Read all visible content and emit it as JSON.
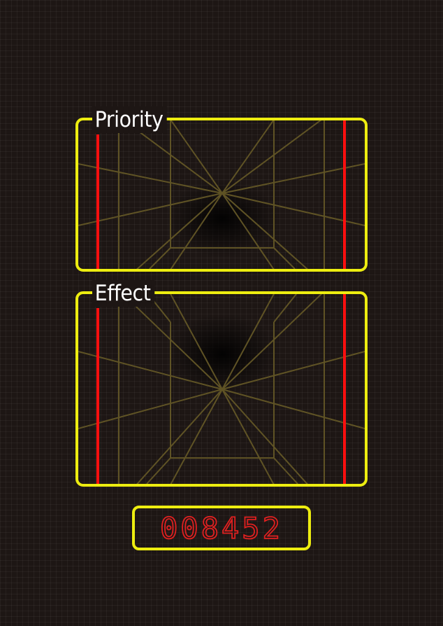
{
  "panels": {
    "priority": {
      "label": "Priority"
    },
    "effect": {
      "label": "Effect"
    }
  },
  "counter": {
    "value": "008452",
    "digits": [
      "0",
      "0",
      "8",
      "4",
      "5",
      "2"
    ]
  },
  "colors": {
    "background": "#1d1614",
    "frame": "#eded10",
    "marker": "#ff0f0f",
    "perspective_grid": "#5f5325",
    "digits": "#e02020"
  }
}
